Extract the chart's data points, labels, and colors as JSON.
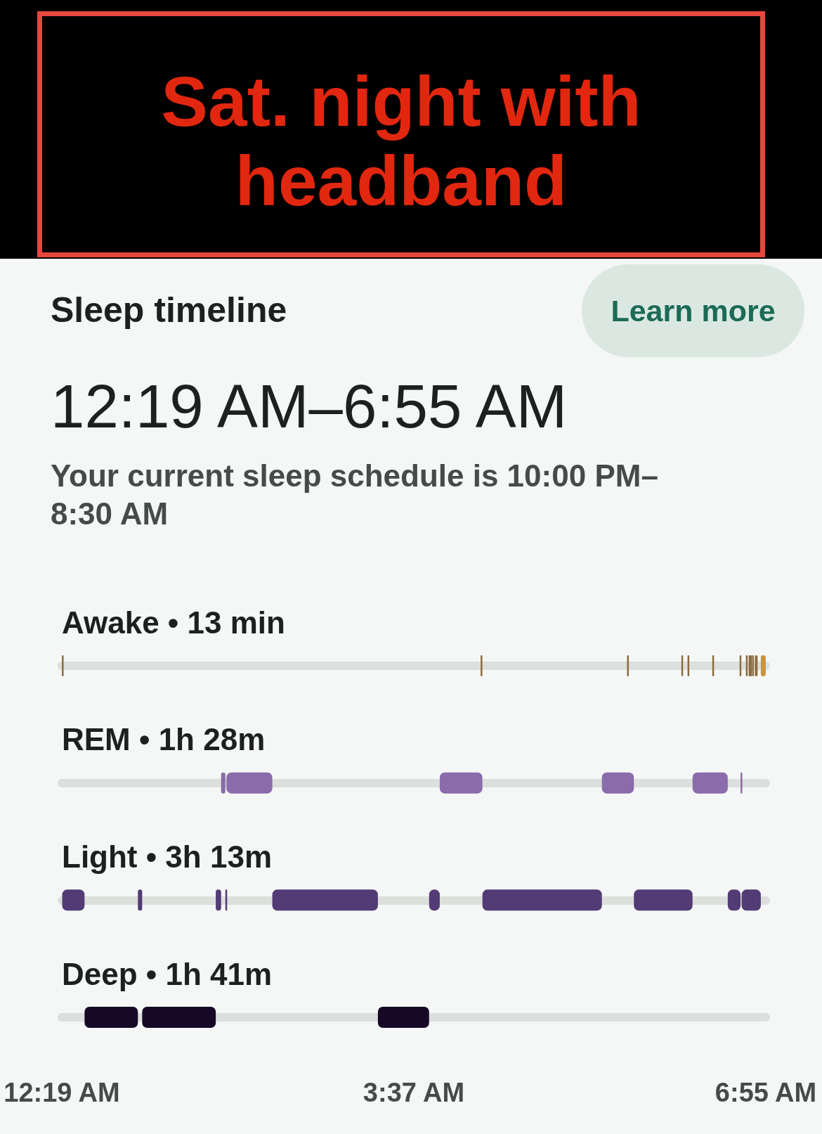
{
  "chart_data": {
    "type": "bar",
    "orientation": "horizontal",
    "title": "Sat. night with headband",
    "subtitle": "Sleep timeline",
    "annotations": [
      "Learn more",
      "12:19 AM–6:55 AM",
      "Your current sleep schedule is 10:00 PM–8:30 AM"
    ],
    "categories": [
      "Awake • 13 min",
      "REM • 1h 28m",
      "Light • 3h 13m",
      "Deep • 1h 41m"
    ],
    "xlim": [
      0.3167,
      6.9167
    ],
    "xticks": [
      {
        "value": 0.3167,
        "label": "12:19 AM"
      },
      {
        "value": 3.6167,
        "label": "3:37 AM"
      },
      {
        "value": 6.9167,
        "label": "6:55 AM"
      }
    ],
    "grid": "y",
    "series": [
      {
        "values": [
          0.013,
          0.04,
          0.21,
          0.5
        ],
        "base": [
          0.317,
          1.81,
          0.32,
          0.53
        ],
        "colors": [
          "#8d6b3f",
          "#8a6bab",
          "#533b75",
          "#170828"
        ]
      },
      {
        "values": [
          0.013,
          0.43,
          0.04,
          0.69
        ],
        "base": [
          4.243,
          1.86,
          1.03,
          1.07
        ],
        "colors": [
          "#8d6b3f",
          "#8a6bab",
          "#533b75",
          "#170828"
        ]
      },
      {
        "values": [
          0.013,
          0.4,
          0.05,
          0.48
        ],
        "base": [
          5.616,
          3.86,
          1.76,
          3.28
        ],
        "colors": [
          "#8d6b3f",
          "#8a6bab",
          "#533b75",
          "#170828"
        ]
      },
      {
        "values": [
          0.013,
          0.3,
          0.01,
          null
        ],
        "base": [
          6.125,
          5.38,
          1.85,
          null
        ],
        "colors": [
          "#8d6b3f",
          "#8a6bab",
          "#533b75",
          null
        ]
      },
      {
        "values": [
          0.013,
          0.33,
          0.99,
          null
        ],
        "base": [
          6.183,
          6.23,
          2.29,
          null
        ],
        "colors": [
          "#8d6b3f",
          "#8a6bab",
          "#533b75",
          null
        ]
      },
      {
        "values": [
          0.013,
          0.01,
          0.1,
          null
        ],
        "base": [
          6.415,
          6.68,
          3.76,
          null
        ],
        "colors": [
          "#8d6b3f",
          "#8a6bab",
          "#533b75",
          null
        ]
      },
      {
        "values": [
          0.013,
          null,
          1.12,
          null
        ],
        "base": [
          6.671,
          null,
          4.26,
          null
        ],
        "colors": [
          "#8d6b3f",
          null,
          "#533b75",
          null
        ]
      },
      {
        "values": [
          0.013,
          null,
          0.55,
          null
        ],
        "base": [
          6.73,
          null,
          5.68,
          null
        ],
        "colors": [
          "#8d6b3f",
          null,
          "#533b75",
          null
        ]
      },
      {
        "values": [
          0.013,
          null,
          0.12,
          null
        ],
        "base": [
          6.756,
          null,
          6.56,
          null
        ],
        "colors": [
          "#8d6b3f",
          null,
          "#533b75",
          null
        ]
      },
      {
        "values": [
          0.013,
          null,
          0.18,
          null
        ],
        "base": [
          6.769,
          null,
          6.69,
          null
        ],
        "colors": [
          "#8d6b3f",
          null,
          "#533b75",
          null
        ]
      },
      {
        "values": [
          0.013,
          null,
          null,
          null
        ],
        "base": [
          6.788,
          null,
          null,
          null
        ],
        "color": "#8d6b3f"
      },
      {
        "values": [
          0.026,
          null,
          null,
          null
        ],
        "base": [
          6.814,
          null,
          null,
          null
        ],
        "color": "#8d6b3f"
      },
      {
        "values": [
          0.046,
          null,
          null,
          null
        ],
        "base": [
          6.87,
          null,
          null,
          null
        ],
        "color": "#c8943e"
      }
    ]
  }
}
